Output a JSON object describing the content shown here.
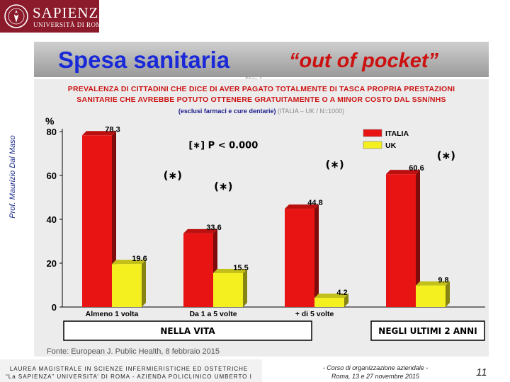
{
  "header": {
    "logo_name": "SAPIENZA",
    "logo_sub": "UNIVERSITÀ DI ROMA",
    "logo_color": "#8b1a2b"
  },
  "side_author": "Prof. Maurizio Dal Maso",
  "title": {
    "main": "Spesa sanitaria",
    "quote": "“out of pocket”",
    "slide_label": "Slide 1"
  },
  "subtitle": {
    "line1": "PREVALENZA DI CITTADINI CHE DICE DI AVER PAGATO TOTALMENTE DI TASCA PROPRIA PRESTAZIONI",
    "line2": "SANITARIE CHE AVREBBE POTUTO OTTENERE GRATUITAMENTE O A MINOR COSTO DAL SSN/NHS",
    "note_bold": "(esclusi farmaci e cure dentarie)",
    "note_rest": "(ITALIA – UK / N=1000)"
  },
  "chart_data": {
    "type": "bar",
    "categories": [
      "Almeno 1 volta",
      "Da 1 a 5 volte",
      "+ di 5 volte",
      ""
    ],
    "series": [
      {
        "name": "ITALIA",
        "color": "#e81414",
        "values": [
          78.3,
          33.6,
          44.8,
          60.6
        ]
      },
      {
        "name": "UK",
        "color": "#f4f020",
        "values": [
          19.6,
          15.5,
          4.2,
          9.8
        ]
      }
    ],
    "data_labels": [
      [
        "78.3",
        "33.6",
        "44.8",
        "60.6"
      ],
      [
        "19.6",
        "15.5",
        "4.2",
        "9.8"
      ]
    ],
    "ylabel": "%",
    "ylim": [
      0,
      80
    ],
    "yticks": [
      0,
      20,
      40,
      60,
      80
    ],
    "legend_position": "top-right",
    "grid": false,
    "annotations": [
      {
        "text": "[∗] P < 0.000",
        "x_group": 1.1,
        "y": 74
      },
      {
        "text": "(∗)",
        "x_group": 0.6,
        "y": 60
      },
      {
        "text": "(∗)",
        "x_group": 1.1,
        "y": 55
      },
      {
        "text": "(∗)",
        "x_group": 2.2,
        "y": 65
      },
      {
        "text": "(∗)",
        "x_group": 3.3,
        "y": 69
      }
    ],
    "group_boxes": [
      {
        "label": "NELLA VITA",
        "groups": [
          0,
          2
        ]
      },
      {
        "label": "NEGLI ULTIMI 2 ANNI",
        "groups": [
          3,
          3
        ]
      }
    ],
    "source": "Fonte: European J. Public Health, 8 febbraio 2015"
  },
  "footer": {
    "left_line1": "LAUREA MAGISTRALE IN SCIENZE INFERMIERISTICHE ED OSTETRICHE",
    "left_line2": "“La SAPIENZA” UNIVERSITA’ DI ROMA - AZIENDA POLICLINICO UMBERTO I",
    "center_line1": "- Corso di organizzazione aziendale -",
    "center_line2": "Roma, 13 e 27 novembre 2015",
    "page_number": "11"
  }
}
